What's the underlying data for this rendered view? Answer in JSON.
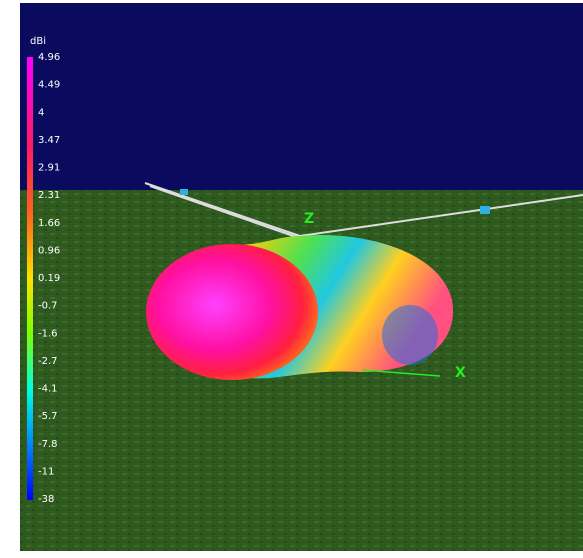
{
  "colorbar": {
    "unit": "dBi",
    "labels": [
      "4.96",
      "4.49",
      "4",
      "3.47",
      "2.91",
      "2.31",
      "1.66",
      "0.96",
      "0.19",
      "-0.7",
      "-1.6",
      "-2.7",
      "-4.1",
      "-5.7",
      "-7.8",
      "-11",
      "-38"
    ]
  },
  "axes": {
    "z": "Z",
    "x": "X"
  }
}
